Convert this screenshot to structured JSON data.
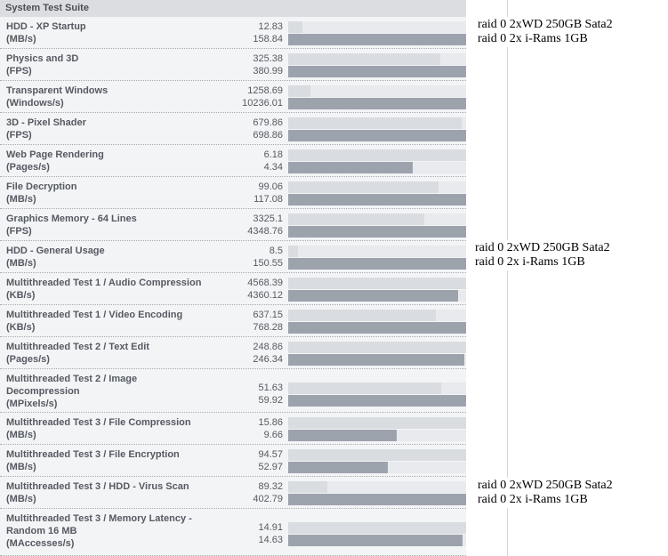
{
  "title": "System Test Suite",
  "rows": [
    {
      "line1": "HDD - XP Startup",
      "line2": "(MB/s)",
      "line3": "",
      "v1": "12.83",
      "v2": "158.84",
      "f1": 0.081,
      "f2": 1.0
    },
    {
      "line1": "Physics and 3D",
      "line2": "(FPS)",
      "line3": "",
      "v1": "325.38",
      "v2": "380.99",
      "f1": 0.854,
      "f2": 1.0
    },
    {
      "line1": "Transparent Windows",
      "line2": "(Windows/s)",
      "line3": "",
      "v1": "1258.69",
      "v2": "10236.01",
      "f1": 0.123,
      "f2": 1.0
    },
    {
      "line1": "3D - Pixel Shader",
      "line2": "(FPS)",
      "line3": "",
      "v1": "679.86",
      "v2": "698.86",
      "f1": 0.973,
      "f2": 1.0
    },
    {
      "line1": "Web Page Rendering",
      "line2": "(Pages/s)",
      "line3": "",
      "v1": "6.18",
      "v2": "4.34",
      "f1": 1.0,
      "f2": 0.702
    },
    {
      "line1": "File Decryption",
      "line2": "(MB/s)",
      "line3": "",
      "v1": "99.06",
      "v2": "117.08",
      "f1": 0.846,
      "f2": 1.0
    },
    {
      "line1": "Graphics Memory - 64 Lines",
      "line2": "(FPS)",
      "line3": "",
      "v1": "3325.1",
      "v2": "4348.76",
      "f1": 0.765,
      "f2": 1.0
    },
    {
      "line1": "HDD - General Usage",
      "line2": "(MB/s)",
      "line3": "",
      "v1": "8.5",
      "v2": "150.55",
      "f1": 0.056,
      "f2": 1.0
    },
    {
      "line1": "Multithreaded Test 1 / Audio Compression",
      "line2": "(KB/s)",
      "line3": "",
      "v1": "4568.39",
      "v2": "4360.12",
      "f1": 1.0,
      "f2": 0.954
    },
    {
      "line1": "Multithreaded Test 1 / Video Encoding",
      "line2": "(KB/s)",
      "line3": "",
      "v1": "637.15",
      "v2": "768.28",
      "f1": 0.829,
      "f2": 1.0
    },
    {
      "line1": "Multithreaded Test 2 / Text Edit",
      "line2": "(Pages/s)",
      "line3": "",
      "v1": "248.86",
      "v2": "246.34",
      "f1": 1.0,
      "f2": 0.99
    },
    {
      "line1": "Multithreaded Test 2 / Image",
      "line2": "Decompression",
      "line3": "(MPixels/s)",
      "v1": "51.63",
      "v2": "59.92",
      "f1": 0.862,
      "f2": 1.0
    },
    {
      "line1": "Multithreaded Test 3 / File Compression",
      "line2": "(MB/s)",
      "line3": "",
      "v1": "15.86",
      "v2": "9.66",
      "f1": 1.0,
      "f2": 0.609
    },
    {
      "line1": "Multithreaded Test 3 / File Encryption",
      "line2": "(MB/s)",
      "line3": "",
      "v1": "94.57",
      "v2": "52.97",
      "f1": 1.0,
      "f2": 0.56
    },
    {
      "line1": "Multithreaded Test 3 / HDD - Virus Scan",
      "line2": "(MB/s)",
      "line3": "",
      "v1": "89.32",
      "v2": "402.79",
      "f1": 0.222,
      "f2": 1.0
    },
    {
      "line1": "Multithreaded Test 3 / Memory Latency -",
      "line2": "Random 16 MB",
      "line3": "(MAccesses/s)",
      "v1": "14.91",
      "v2": "14.63",
      "f1": 1.0,
      "f2": 0.981
    }
  ],
  "notes": [
    {
      "line1": "raid 0  2xWD 250GB Sata2",
      "line2": "raid 0 2x i-Rams 1GB"
    },
    {
      "line1": "raid 0  2xWD 250GB Sata2",
      "line2": "raid 0 2x i-Rams 1GB"
    },
    {
      "line1": "raid 0  2xWD 250GB Sata2",
      "line2": "raid 0 2x i-Rams 1GB"
    }
  ],
  "colors": {
    "bar_light": "#d9dce0",
    "bar_dark": "#9da3ad",
    "header_bg": "#dcdde0",
    "panel_bg": "#f3f4f6"
  }
}
